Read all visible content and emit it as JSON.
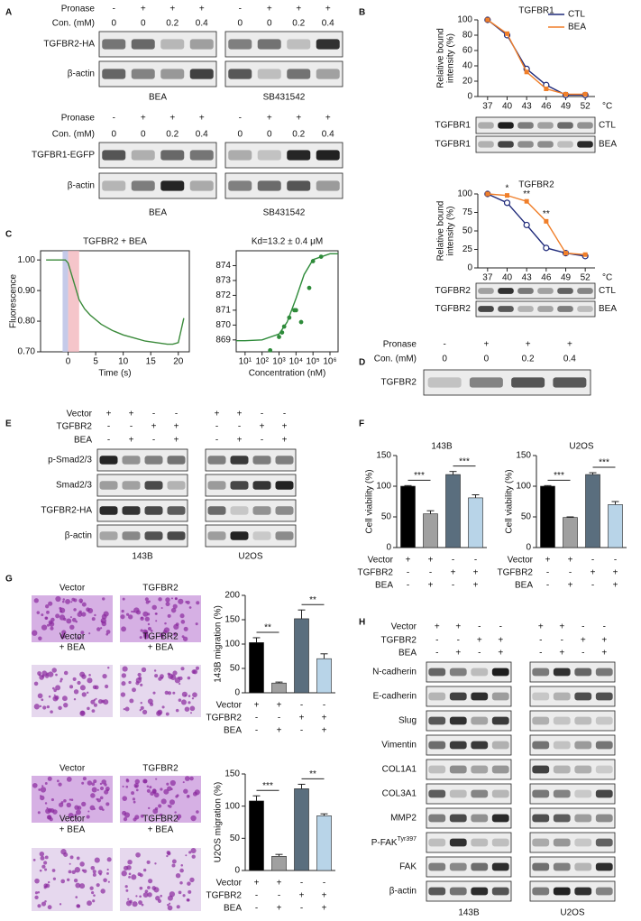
{
  "panels": [
    "A",
    "B",
    "C",
    "D",
    "E",
    "F",
    "G",
    "H"
  ],
  "blots": [
    {
      "header": [
        {
          "label": "Pronase",
          "cells": [
            "-",
            "+",
            "+",
            "+",
            "-",
            "+",
            "+",
            "+"
          ]
        },
        {
          "label": "Con. (mM)",
          "cells": [
            "0",
            "0",
            "0.2",
            "0.4",
            "0",
            "0",
            "0.2",
            "0.4"
          ]
        }
      ],
      "rows": [
        "TGFBR2-HA",
        "β-actin"
      ],
      "groups": [
        "BEA",
        "SB431542"
      ]
    },
    {
      "header": [
        {
          "label": "Pronase",
          "cells": [
            "-",
            "+",
            "+",
            "+",
            "-",
            "+",
            "+",
            "+"
          ]
        },
        {
          "label": "Con. (mM)",
          "cells": [
            "0",
            "0",
            "0.2",
            "0.4",
            "0",
            "0",
            "0.2",
            "0.4"
          ]
        }
      ],
      "rows": [
        "TGFBR1-EGFP",
        "β-actin"
      ],
      "groups": [
        "BEA",
        "SB431542"
      ]
    },
    {
      "rows": [
        "TGFBR1",
        "TGFBR1"
      ],
      "right_labels": [
        "CTL",
        "BEA"
      ]
    },
    {
      "rows": [
        "TGFBR2",
        "TGFBR2"
      ],
      "right_labels": [
        "CTL",
        "BEA"
      ]
    },
    {
      "header": [
        {
          "label": "Pronase",
          "cells": [
            "-",
            "+",
            "+",
            "+"
          ]
        },
        {
          "label": "Con. (mM)",
          "cells": [
            "0",
            "0",
            "0.2",
            "0.4"
          ]
        }
      ],
      "rows": [
        "TGFBR2"
      ]
    },
    {
      "header": [
        {
          "label": "Vector",
          "cells": [
            "+",
            "+",
            "-",
            "-",
            "+",
            "+",
            "-",
            "-"
          ]
        },
        {
          "label": "TGFBR2",
          "cells": [
            "-",
            "-",
            "+",
            "+",
            "-",
            "-",
            "+",
            "+"
          ]
        },
        {
          "label": "BEA",
          "cells": [
            "-",
            "+",
            "-",
            "+",
            "-",
            "+",
            "-",
            "+"
          ]
        }
      ],
      "rows": [
        "p-Smad2/3",
        "Smad2/3",
        "TGFBR2-HA",
        "β-actin"
      ],
      "groups": [
        "143B",
        "U2OS"
      ]
    },
    {
      "header": [
        {
          "label": "Vector",
          "cells": [
            "+",
            "+",
            "-",
            "-",
            "+",
            "+",
            "-",
            "-"
          ]
        },
        {
          "label": "TGFBR2",
          "cells": [
            "-",
            "-",
            "+",
            "+",
            "-",
            "-",
            "+",
            "+"
          ]
        },
        {
          "label": "BEA",
          "cells": [
            "-",
            "+",
            "-",
            "+",
            "-",
            "+",
            "-",
            "+"
          ]
        }
      ],
      "rows": [
        "N-cadherin",
        "E-cadherin",
        "Slug",
        "Vimentin",
        "COL1A1",
        "COL3A1",
        "MMP2",
        {
          "label": "P-FAK",
          "sup": "Tyr397"
        },
        "FAK",
        "β-actin"
      ],
      "groups": [
        "143B",
        "U2OS"
      ]
    }
  ],
  "micrographs": [
    {
      "labels": [
        [
          "Vector"
        ],
        [
          "TGFBR2"
        ],
        [
          "Vector",
          "+ BEA"
        ],
        [
          "TGFBR2",
          "+ BEA"
        ]
      ]
    },
    {
      "labels": [
        [
          "Vector"
        ],
        [
          "TGFBR2"
        ],
        [
          "Vector",
          "+ BEA"
        ],
        [
          "TGFBR2",
          "+ BEA"
        ]
      ]
    }
  ],
  "chart_data": [
    {
      "type": "line",
      "title": "TGFBR1",
      "y_label": [
        "Relative bound",
        "intensity (%)"
      ],
      "x_unit": "°C",
      "x": [
        37,
        40,
        43,
        46,
        49,
        52
      ],
      "xlim": [
        35.5,
        53.5
      ],
      "xticks": [
        37,
        40,
        43,
        46,
        49,
        52
      ],
      "ylim": [
        0,
        100
      ],
      "yticks": [
        0,
        20,
        40,
        60,
        80,
        100
      ],
      "legend": "top-right",
      "series": [
        {
          "name": "CTL",
          "color": "#1f2a7a",
          "marker": "circle-open",
          "values": [
            100,
            80,
            36,
            15,
            2,
            2
          ]
        },
        {
          "name": "BEA",
          "color": "#f07f2a",
          "marker": "square",
          "values": [
            100,
            82,
            32,
            10,
            3,
            3
          ]
        }
      ]
    },
    {
      "type": "line",
      "title": "TGFBR2",
      "y_label": [
        "Relative bound",
        "intensity (%)"
      ],
      "x_unit": "°C",
      "x": [
        37,
        40,
        43,
        46,
        49,
        52
      ],
      "xlim": [
        35.5,
        53.5
      ],
      "xticks": [
        37,
        40,
        43,
        46,
        49,
        52
      ],
      "ylim": [
        0,
        100
      ],
      "yticks": [
        0,
        25,
        50,
        75,
        100
      ],
      "series": [
        {
          "name": "CTL",
          "color": "#1f2a7a",
          "marker": "circle-open",
          "values": [
            100,
            88,
            58,
            27,
            20,
            16
          ]
        },
        {
          "name": "BEA",
          "color": "#f07f2a",
          "marker": "square",
          "values": [
            100,
            98,
            90,
            63,
            20,
            18
          ]
        }
      ],
      "annotations": [
        {
          "x": 40,
          "label": "*"
        },
        {
          "x": 43,
          "label": "**"
        },
        {
          "x": 46,
          "label": "**"
        }
      ]
    },
    {
      "type": "scatter",
      "title": "TGFBR2 + BEA",
      "y_label": [
        "Fluorescence"
      ],
      "x_label": "Time (s)",
      "xlim": [
        -5,
        22
      ],
      "xticks": [
        0,
        5,
        10,
        15,
        20
      ],
      "ylim": [
        0.7,
        1.03
      ],
      "yticks": [
        {
          "value": 0.7,
          "label": "0.70"
        },
        {
          "value": 0.8,
          "label": "0.80"
        },
        {
          "value": 0.9,
          "label": "0.90"
        },
        {
          "value": 1,
          "label": "1.00"
        }
      ],
      "shaded": [
        {
          "x": [
            -1,
            0
          ],
          "color": "#b7bde3"
        },
        {
          "x": [
            0,
            2
          ],
          "color": "#f3b6bd"
        }
      ],
      "series": [
        {
          "style": "line",
          "color": "#3a8a3a",
          "x": [
            -4,
            -2,
            -0.5,
            0,
            1,
            2,
            3,
            4,
            6,
            8,
            10,
            12,
            14,
            16,
            18,
            19,
            20,
            20.5,
            21
          ],
          "values": [
            1,
            1,
            1,
            0.99,
            0.93,
            0.87,
            0.84,
            0.82,
            0.79,
            0.77,
            0.755,
            0.745,
            0.735,
            0.73,
            0.725,
            0.725,
            0.73,
            0.77,
            0.81
          ]
        }
      ]
    },
    {
      "type": "scatter",
      "title": "Kd=13.2 ± 0.4 μM",
      "x_label": "Concentration (nM)",
      "xlog": true,
      "xlim": [
        3,
        3000000
      ],
      "xticks": [
        {
          "value": 10,
          "label": "10¹"
        },
        {
          "value": 100,
          "label": "10²"
        },
        {
          "value": 1000,
          "label": "10³"
        },
        {
          "value": 10000,
          "label": "10⁴"
        },
        {
          "value": 100000,
          "label": "10⁵"
        },
        {
          "value": 1000000,
          "label": "10⁶"
        }
      ],
      "ylim": [
        868.2,
        875
      ],
      "yticks": [
        869,
        870,
        871,
        872,
        873,
        874
      ],
      "series": [
        {
          "style": "points",
          "color": "#2e8b3a",
          "x": [
            300,
            1000,
            1500,
            2000,
            4000,
            8000,
            10000,
            20000,
            60000,
            100000,
            300000
          ],
          "values": [
            868.3,
            869.2,
            869.5,
            869.9,
            870.5,
            871,
            871,
            870.2,
            872.5,
            874.3,
            874.6
          ]
        },
        {
          "style": "line",
          "color": "#2e8b3a",
          "x": [
            3,
            10,
            100,
            1000,
            3000,
            10000,
            30000,
            100000,
            1000000,
            3000000
          ],
          "values": [
            868.95,
            868.95,
            869,
            869.4,
            870.2,
            871.8,
            873.4,
            874.4,
            874.8,
            874.8
          ]
        }
      ]
    },
    {
      "type": "bar",
      "title": "143B",
      "y_label": [
        "Cell viability (%)"
      ],
      "ylim": [
        0,
        150
      ],
      "yticks": [
        0,
        50,
        100,
        150
      ],
      "values": [
        100,
        55,
        119,
        81
      ],
      "errors": [
        1,
        5,
        5,
        5
      ],
      "colors": [
        "#000000",
        "#a0a0a0",
        "#5a6e7e",
        "#b8d4e8"
      ],
      "significance": [
        "***",
        "***"
      ],
      "conditions": [
        {
          "label": "Vector",
          "cells": [
            "+",
            "+",
            "-",
            "-"
          ]
        },
        {
          "label": "TGFBR2",
          "cells": [
            "-",
            "-",
            "+",
            "+"
          ]
        },
        {
          "label": "BEA",
          "cells": [
            "-",
            "+",
            "-",
            "+"
          ]
        }
      ]
    },
    {
      "type": "bar",
      "title": "U2OS",
      "y_label": [
        "Cell viability (%)"
      ],
      "ylim": [
        0,
        150
      ],
      "yticks": [
        0,
        50,
        100,
        150
      ],
      "values": [
        100,
        49,
        119,
        70
      ],
      "errors": [
        1,
        1,
        3,
        5
      ],
      "colors": [
        "#000000",
        "#a0a0a0",
        "#5a6e7e",
        "#b8d4e8"
      ],
      "significance": [
        "***",
        "***"
      ],
      "conditions": [
        {
          "label": "Vector",
          "cells": [
            "+",
            "+",
            "-",
            "-"
          ]
        },
        {
          "label": "TGFBR2",
          "cells": [
            "-",
            "-",
            "+",
            "+"
          ]
        },
        {
          "label": "BEA",
          "cells": [
            "-",
            "+",
            "-",
            "+"
          ]
        }
      ]
    },
    {
      "type": "bar",
      "y_label": [
        "143B migration (%)"
      ],
      "ylim": [
        0,
        200
      ],
      "yticks": [
        0,
        50,
        100,
        150,
        200
      ],
      "values": [
        103,
        20,
        152,
        70
      ],
      "errors": [
        10,
        2,
        18,
        10
      ],
      "colors": [
        "#000000",
        "#a0a0a0",
        "#5a6e7e",
        "#b8d4e8"
      ],
      "significance": [
        "**",
        "**"
      ],
      "conditions": [
        {
          "label": "Vector",
          "cells": [
            "+",
            "+",
            "-",
            "-"
          ]
        },
        {
          "label": "TGFBR2",
          "cells": [
            "-",
            "-",
            "+",
            "+"
          ]
        },
        {
          "label": "BEA",
          "cells": [
            "-",
            "+",
            "-",
            "+"
          ]
        }
      ]
    },
    {
      "type": "bar",
      "y_label": [
        "U2OS migration (%)"
      ],
      "ylim": [
        0,
        150
      ],
      "yticks": [
        0,
        50,
        100,
        150
      ],
      "values": [
        108,
        22,
        127,
        85
      ],
      "errors": [
        8,
        3,
        7,
        3
      ],
      "colors": [
        "#000000",
        "#a0a0a0",
        "#5a6e7e",
        "#b8d4e8"
      ],
      "significance": [
        "***",
        "**"
      ],
      "conditions": [
        {
          "label": "Vector",
          "cells": [
            "+",
            "+",
            "-",
            "-"
          ]
        },
        {
          "label": "TGFBR2",
          "cells": [
            "-",
            "-",
            "+",
            "+"
          ]
        },
        {
          "label": "BEA",
          "cells": [
            "-",
            "+",
            "-",
            "+"
          ]
        }
      ]
    }
  ]
}
